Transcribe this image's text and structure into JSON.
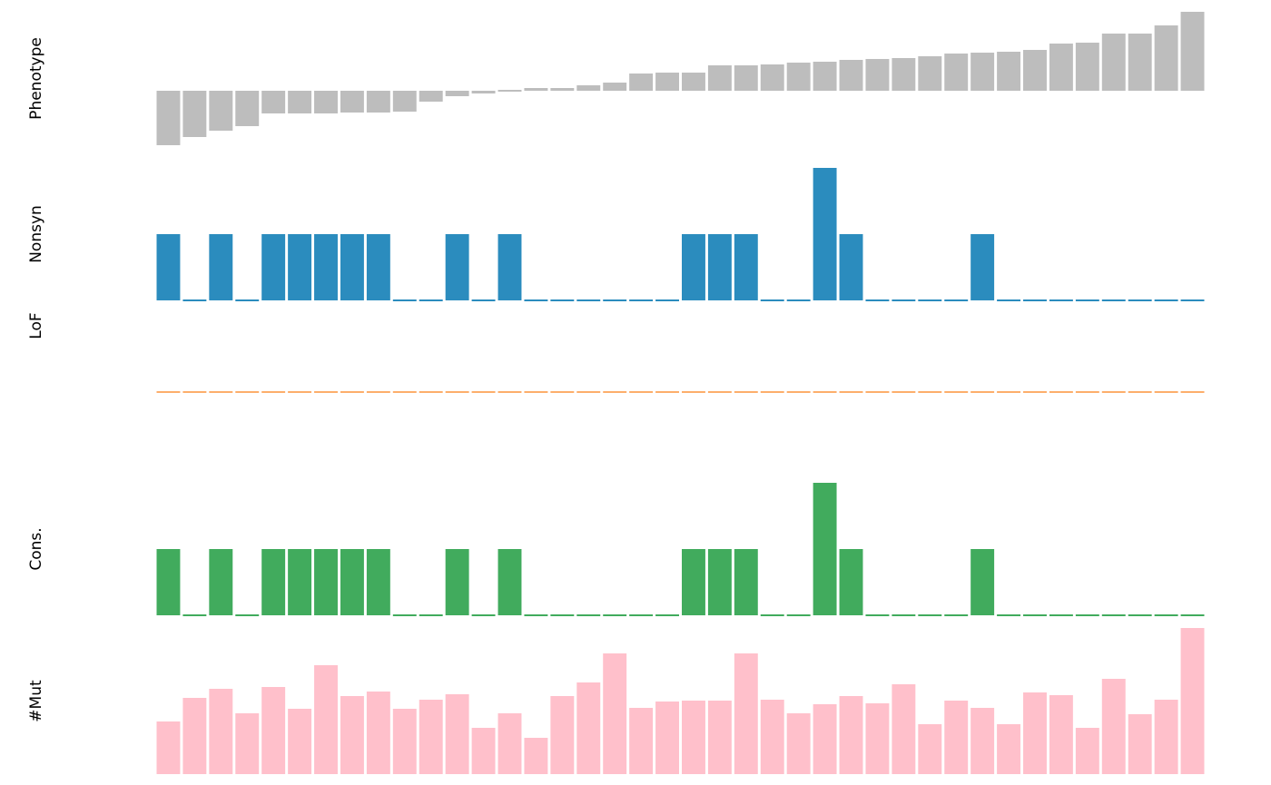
{
  "chart_data": [
    {
      "type": "bar",
      "ylabel": "Phenotype",
      "color": "#bdbdbd",
      "ylim": [
        -60,
        87
      ],
      "values": [
        -60,
        -51,
        -44,
        -39,
        -25,
        -25,
        -25,
        -24,
        -24,
        -23,
        -12,
        -6,
        -3,
        -1,
        3,
        3,
        6,
        9,
        19,
        20,
        20,
        28,
        28,
        29,
        31,
        32,
        34,
        35,
        36,
        38,
        41,
        42,
        43,
        45,
        52,
        53,
        63,
        63,
        72,
        87
      ]
    },
    {
      "type": "bar",
      "ylabel": "Nonsyn",
      "color": "#2b8cbe",
      "ylim": [
        0,
        2
      ],
      "values": [
        1,
        0,
        1,
        0,
        1,
        1,
        1,
        1,
        1,
        0,
        0,
        1,
        0,
        1,
        0,
        0,
        0,
        0,
        0,
        0,
        1,
        1,
        1,
        0,
        0,
        2,
        1,
        0,
        0,
        0,
        0,
        1,
        0,
        0,
        0,
        0,
        0,
        0,
        0,
        0
      ]
    },
    {
      "type": "bar",
      "ylabel": "LoF",
      "color": "#fdae6b",
      "ylim": [
        0,
        2
      ],
      "values": [
        0,
        0,
        0,
        0,
        0,
        0,
        0,
        0,
        0,
        0,
        0,
        0,
        0,
        0,
        0,
        0,
        0,
        0,
        0,
        0,
        0,
        0,
        0,
        0,
        0,
        0,
        0,
        0,
        0,
        0,
        0,
        0,
        0,
        0,
        0,
        0,
        0,
        0,
        0,
        0
      ]
    },
    {
      "type": "bar",
      "ylabel": "Cons.",
      "color": "#41ab5d",
      "ylim": [
        0,
        2
      ],
      "values": [
        1,
        0,
        1,
        0,
        1,
        1,
        1,
        1,
        1,
        0,
        0,
        1,
        0,
        1,
        0,
        0,
        0,
        0,
        0,
        0,
        1,
        1,
        1,
        0,
        0,
        2,
        1,
        0,
        0,
        0,
        0,
        1,
        0,
        0,
        0,
        0,
        0,
        0,
        0,
        0
      ]
    },
    {
      "type": "bar",
      "ylabel": "#Mut",
      "color": "#ffc0cb",
      "ylim": [
        0,
        161
      ],
      "values": [
        58,
        84,
        94,
        67,
        96,
        72,
        120,
        86,
        91,
        72,
        82,
        88,
        51,
        67,
        40,
        86,
        101,
        133,
        73,
        80,
        81,
        81,
        133,
        82,
        67,
        77,
        86,
        78,
        99,
        55,
        81,
        73,
        55,
        90,
        87,
        51,
        105,
        66,
        82,
        161
      ]
    }
  ]
}
